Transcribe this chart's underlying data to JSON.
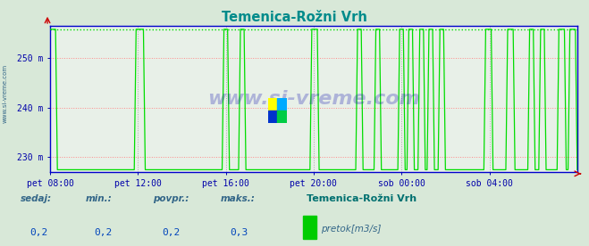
{
  "title": "Temenica-Rožni Vrh",
  "title_color": "#008b8b",
  "bg_color": "#d8e8d8",
  "plot_bg_color": "#e8f0e8",
  "ylim": [
    227.0,
    256.5
  ],
  "yticks": [
    230,
    240,
    250
  ],
  "ytick_labels": [
    "230 m",
    "240 m",
    "250 m"
  ],
  "xlim_max": 288,
  "xtick_positions": [
    0,
    48,
    96,
    144,
    192,
    240
  ],
  "xtick_labels": [
    "pet 08:00",
    "pet 12:00",
    "pet 16:00",
    "pet 20:00",
    "sob 00:00",
    "sob 04:00"
  ],
  "hgrid_color": "#ff8888",
  "hgrid_style": "dotted",
  "vgrid_color": "#aaaaaa",
  "vgrid_style": "dotted",
  "line_color": "#00dd00",
  "baseline": 227.5,
  "max_val": 255.8,
  "top_line_y": 255.8,
  "top_line_color": "#00dd00",
  "axis_color": "#0000cc",
  "tick_color": "#0000aa",
  "watermark": "www.si-vreme.com",
  "watermark_color": "#0000aa",
  "watermark_alpha": 0.25,
  "watermark_fontsize": 16,
  "footer_bg": "#c8dce8",
  "footer_labels": [
    "sedaj:",
    "min.:",
    "povpr.:",
    "maks.:"
  ],
  "footer_values": [
    "0,2",
    "0,2",
    "0,2",
    "0,3"
  ],
  "footer_station": "Temenica-Rožni Vrh",
  "footer_legend": "pretok[m3/s]",
  "legend_color": "#00cc00",
  "sidebar_text": "www.si-vreme.com",
  "sidebar_color": "#336688",
  "spike_data": [
    [
      0,
      4
    ],
    [
      47,
      5
    ],
    [
      95,
      3
    ],
    [
      104,
      3
    ],
    [
      143,
      4
    ],
    [
      168,
      3
    ],
    [
      178,
      3
    ],
    [
      191,
      3
    ],
    [
      196,
      3
    ],
    [
      202,
      3
    ],
    [
      207,
      3
    ],
    [
      213,
      3
    ],
    [
      238,
      4
    ],
    [
      250,
      4
    ],
    [
      262,
      3
    ],
    [
      268,
      3
    ],
    [
      278,
      4
    ],
    [
      284,
      4
    ]
  ],
  "logo_colors": [
    "#ffff00",
    "#00aaff",
    "#0033cc",
    "#00cc44"
  ]
}
